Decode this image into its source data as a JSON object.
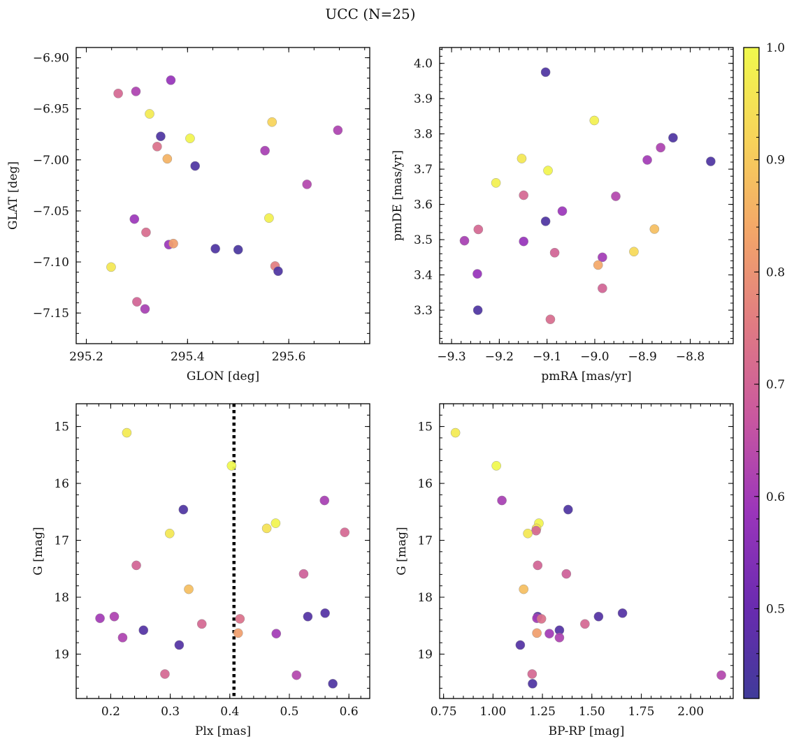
{
  "figure": {
    "title": "UCC (N=25)"
  },
  "colorbar": {
    "range": [
      0.42,
      1.0
    ],
    "ticks": [
      0.5,
      0.6,
      0.7,
      0.8,
      0.9,
      1.0
    ],
    "colormap": "plasma",
    "colormap_stops": [
      "#403b99",
      "#6a2bb0",
      "#9a35bb",
      "#c857a0",
      "#e07a83",
      "#f3a569",
      "#f7d35a",
      "#f0f94d"
    ]
  },
  "chart_data": [
    {
      "id": "glon-glat",
      "type": "scatter",
      "title": "",
      "xlabel": "GLON [deg]",
      "ylabel": "GLAT [deg]",
      "xlim": [
        295.18,
        295.76
      ],
      "ylim": [
        -7.18,
        -6.89
      ],
      "y_inverted": false,
      "xticks": [
        295.2,
        295.4,
        295.6
      ],
      "xtick_labels": [
        "295.2",
        "295.4",
        "295.6"
      ],
      "yticks": [
        -6.9,
        -6.95,
        -7.0,
        -7.05,
        -7.1,
        -7.15
      ],
      "ytick_labels": [
        "−6.90",
        "−6.95",
        "−7.00",
        "−7.05",
        "−7.10",
        "−7.15"
      ],
      "xminor_step": 0.05,
      "yminor_step": 0.01,
      "vline": null,
      "points": [
        {
          "x": 295.263,
          "y": -6.935,
          "c": 0.71
        },
        {
          "x": 295.298,
          "y": -6.933,
          "c": 0.62
        },
        {
          "x": 295.367,
          "y": -6.922,
          "c": 0.58
        },
        {
          "x": 295.325,
          "y": -6.955,
          "c": 0.97
        },
        {
          "x": 295.347,
          "y": -6.977,
          "c": 0.45
        },
        {
          "x": 295.34,
          "y": -6.987,
          "c": 0.73
        },
        {
          "x": 295.36,
          "y": -6.999,
          "c": 0.86
        },
        {
          "x": 295.405,
          "y": -6.979,
          "c": 0.99
        },
        {
          "x": 295.415,
          "y": -7.006,
          "c": 0.45
        },
        {
          "x": 295.567,
          "y": -6.963,
          "c": 0.92
        },
        {
          "x": 295.553,
          "y": -6.991,
          "c": 0.61
        },
        {
          "x": 295.697,
          "y": -6.971,
          "c": 0.62
        },
        {
          "x": 295.636,
          "y": -7.024,
          "c": 0.63
        },
        {
          "x": 295.295,
          "y": -7.058,
          "c": 0.59
        },
        {
          "x": 295.318,
          "y": -7.071,
          "c": 0.72
        },
        {
          "x": 295.363,
          "y": -7.083,
          "c": 0.59
        },
        {
          "x": 295.372,
          "y": -7.082,
          "c": 0.82
        },
        {
          "x": 295.455,
          "y": -7.087,
          "c": 0.45
        },
        {
          "x": 295.5,
          "y": -7.088,
          "c": 0.44
        },
        {
          "x": 295.561,
          "y": -7.057,
          "c": 0.98
        },
        {
          "x": 295.573,
          "y": -7.104,
          "c": 0.76
        },
        {
          "x": 295.579,
          "y": -7.109,
          "c": 0.45
        },
        {
          "x": 295.249,
          "y": -7.105,
          "c": 0.96
        },
        {
          "x": 295.3,
          "y": -7.139,
          "c": 0.7
        },
        {
          "x": 295.316,
          "y": -7.146,
          "c": 0.61
        }
      ]
    },
    {
      "id": "pmra-pmde",
      "type": "scatter",
      "title": "",
      "xlabel": "pmRA [mas/yr]",
      "ylabel": "pmDE [mas/yr]",
      "xlim": [
        -9.325,
        -8.71
      ],
      "ylim": [
        3.205,
        4.045
      ],
      "y_inverted": false,
      "xticks": [
        -9.3,
        -9.2,
        -9.1,
        -9.0,
        -8.9,
        -8.8
      ],
      "xtick_labels": [
        "−9.3",
        "−9.2",
        "−9.1",
        "−9.0",
        "−8.9",
        "−8.8"
      ],
      "yticks": [
        3.3,
        3.4,
        3.5,
        3.6,
        3.7,
        3.8,
        3.9,
        4.0
      ],
      "ytick_labels": [
        "3.3",
        "3.4",
        "3.5",
        "3.6",
        "3.7",
        "3.8",
        "3.9",
        "4.0"
      ],
      "xminor_step": 0.02,
      "yminor_step": 0.02,
      "vline": null,
      "points": [
        {
          "x": -9.103,
          "y": 3.975,
          "c": 0.45
        },
        {
          "x": -9.001,
          "y": 3.838,
          "c": 0.98
        },
        {
          "x": -8.836,
          "y": 3.789,
          "c": 0.45
        },
        {
          "x": -8.862,
          "y": 3.761,
          "c": 0.62
        },
        {
          "x": -8.89,
          "y": 3.726,
          "c": 0.6
        },
        {
          "x": -8.757,
          "y": 3.722,
          "c": 0.45
        },
        {
          "x": -9.153,
          "y": 3.73,
          "c": 0.96
        },
        {
          "x": -9.098,
          "y": 3.696,
          "c": 0.99
        },
        {
          "x": -9.207,
          "y": 3.661,
          "c": 0.98
        },
        {
          "x": -9.149,
          "y": 3.626,
          "c": 0.71
        },
        {
          "x": -8.956,
          "y": 3.623,
          "c": 0.63
        },
        {
          "x": -9.068,
          "y": 3.581,
          "c": 0.59
        },
        {
          "x": -9.103,
          "y": 3.552,
          "c": 0.45
        },
        {
          "x": -9.244,
          "y": 3.529,
          "c": 0.71
        },
        {
          "x": -8.875,
          "y": 3.53,
          "c": 0.88
        },
        {
          "x": -9.273,
          "y": 3.497,
          "c": 0.61
        },
        {
          "x": -9.149,
          "y": 3.495,
          "c": 0.58
        },
        {
          "x": -9.084,
          "y": 3.463,
          "c": 0.7
        },
        {
          "x": -8.918,
          "y": 3.466,
          "c": 0.93
        },
        {
          "x": -8.984,
          "y": 3.45,
          "c": 0.6
        },
        {
          "x": -8.993,
          "y": 3.428,
          "c": 0.84
        },
        {
          "x": -9.246,
          "y": 3.403,
          "c": 0.58
        },
        {
          "x": -8.984,
          "y": 3.362,
          "c": 0.7
        },
        {
          "x": -9.245,
          "y": 3.3,
          "c": 0.45
        },
        {
          "x": -9.093,
          "y": 3.274,
          "c": 0.72
        }
      ]
    },
    {
      "id": "plx-g",
      "type": "scatter",
      "title": "",
      "xlabel": "Plx [mas]",
      "ylabel": "G [mag]",
      "xlim": [
        0.142,
        0.635
      ],
      "ylim": [
        19.78,
        14.6
      ],
      "y_inverted": true,
      "xticks": [
        0.2,
        0.3,
        0.4,
        0.5,
        0.6
      ],
      "xtick_labels": [
        "0.2",
        "0.3",
        "0.4",
        "0.5",
        "0.6"
      ],
      "yticks": [
        15,
        16,
        17,
        18,
        19
      ],
      "ytick_labels": [
        "15",
        "16",
        "17",
        "18",
        "19"
      ],
      "xminor_step": 0.02,
      "yminor_step": 0.2,
      "vline": 0.407,
      "points": [
        {
          "x": 0.227,
          "y": 15.11,
          "c": 0.97
        },
        {
          "x": 0.403,
          "y": 15.69,
          "c": 1.0
        },
        {
          "x": 0.559,
          "y": 16.3,
          "c": 0.61
        },
        {
          "x": 0.322,
          "y": 16.46,
          "c": 0.45
        },
        {
          "x": 0.477,
          "y": 16.7,
          "c": 0.99
        },
        {
          "x": 0.462,
          "y": 16.79,
          "c": 0.95
        },
        {
          "x": 0.593,
          "y": 16.86,
          "c": 0.71
        },
        {
          "x": 0.299,
          "y": 16.88,
          "c": 0.96
        },
        {
          "x": 0.243,
          "y": 17.44,
          "c": 0.7
        },
        {
          "x": 0.524,
          "y": 17.59,
          "c": 0.69
        },
        {
          "x": 0.331,
          "y": 17.86,
          "c": 0.88
        },
        {
          "x": 0.56,
          "y": 18.28,
          "c": 0.46
        },
        {
          "x": 0.206,
          "y": 18.34,
          "c": 0.62
        },
        {
          "x": 0.531,
          "y": 18.34,
          "c": 0.46
        },
        {
          "x": 0.182,
          "y": 18.37,
          "c": 0.6
        },
        {
          "x": 0.417,
          "y": 18.38,
          "c": 0.73
        },
        {
          "x": 0.353,
          "y": 18.47,
          "c": 0.71
        },
        {
          "x": 0.255,
          "y": 18.58,
          "c": 0.46
        },
        {
          "x": 0.414,
          "y": 18.63,
          "c": 0.82
        },
        {
          "x": 0.478,
          "y": 18.64,
          "c": 0.6
        },
        {
          "x": 0.22,
          "y": 18.71,
          "c": 0.62
        },
        {
          "x": 0.315,
          "y": 18.84,
          "c": 0.46
        },
        {
          "x": 0.291,
          "y": 19.35,
          "c": 0.71
        },
        {
          "x": 0.512,
          "y": 19.37,
          "c": 0.63
        },
        {
          "x": 0.573,
          "y": 19.52,
          "c": 0.45
        }
      ]
    },
    {
      "id": "bprp-g",
      "type": "scatter",
      "title": "",
      "xlabel": "BP-RP [mag]",
      "ylabel": "G [mag]",
      "xlim": [
        0.73,
        2.215
      ],
      "ylim": [
        19.78,
        14.6
      ],
      "y_inverted": true,
      "xticks": [
        0.75,
        1.0,
        1.25,
        1.5,
        1.75,
        2.0
      ],
      "xtick_labels": [
        "0.75",
        "1.00",
        "1.25",
        "1.50",
        "1.75",
        "2.00"
      ],
      "yticks": [
        15,
        16,
        17,
        18,
        19
      ],
      "ytick_labels": [
        "15",
        "16",
        "17",
        "18",
        "19"
      ],
      "xminor_step": 0.05,
      "yminor_step": 0.2,
      "vline": null,
      "points": [
        {
          "x": 0.81,
          "y": 15.11,
          "c": 0.97
        },
        {
          "x": 1.017,
          "y": 15.69,
          "c": 1.0
        },
        {
          "x": 1.045,
          "y": 16.3,
          "c": 0.61
        },
        {
          "x": 1.38,
          "y": 16.46,
          "c": 0.45
        },
        {
          "x": 1.232,
          "y": 16.7,
          "c": 0.99
        },
        {
          "x": 1.22,
          "y": 16.79,
          "c": 0.95
        },
        {
          "x": 1.218,
          "y": 16.83,
          "c": 0.71
        },
        {
          "x": 1.176,
          "y": 16.88,
          "c": 0.96
        },
        {
          "x": 1.226,
          "y": 17.44,
          "c": 0.7
        },
        {
          "x": 1.371,
          "y": 17.59,
          "c": 0.69
        },
        {
          "x": 1.155,
          "y": 17.86,
          "c": 0.88
        },
        {
          "x": 1.655,
          "y": 18.28,
          "c": 0.46
        },
        {
          "x": 1.226,
          "y": 18.34,
          "c": 0.46
        },
        {
          "x": 1.534,
          "y": 18.34,
          "c": 0.46
        },
        {
          "x": 1.222,
          "y": 18.37,
          "c": 0.6
        },
        {
          "x": 1.245,
          "y": 18.38,
          "c": 0.73
        },
        {
          "x": 1.465,
          "y": 18.47,
          "c": 0.71
        },
        {
          "x": 1.336,
          "y": 18.58,
          "c": 0.46
        },
        {
          "x": 1.222,
          "y": 18.63,
          "c": 0.82
        },
        {
          "x": 1.285,
          "y": 18.64,
          "c": 0.6
        },
        {
          "x": 1.336,
          "y": 18.71,
          "c": 0.62
        },
        {
          "x": 1.138,
          "y": 18.84,
          "c": 0.46
        },
        {
          "x": 1.198,
          "y": 19.35,
          "c": 0.71
        },
        {
          "x": 2.155,
          "y": 19.37,
          "c": 0.63
        },
        {
          "x": 1.2,
          "y": 19.52,
          "c": 0.45
        }
      ]
    }
  ]
}
